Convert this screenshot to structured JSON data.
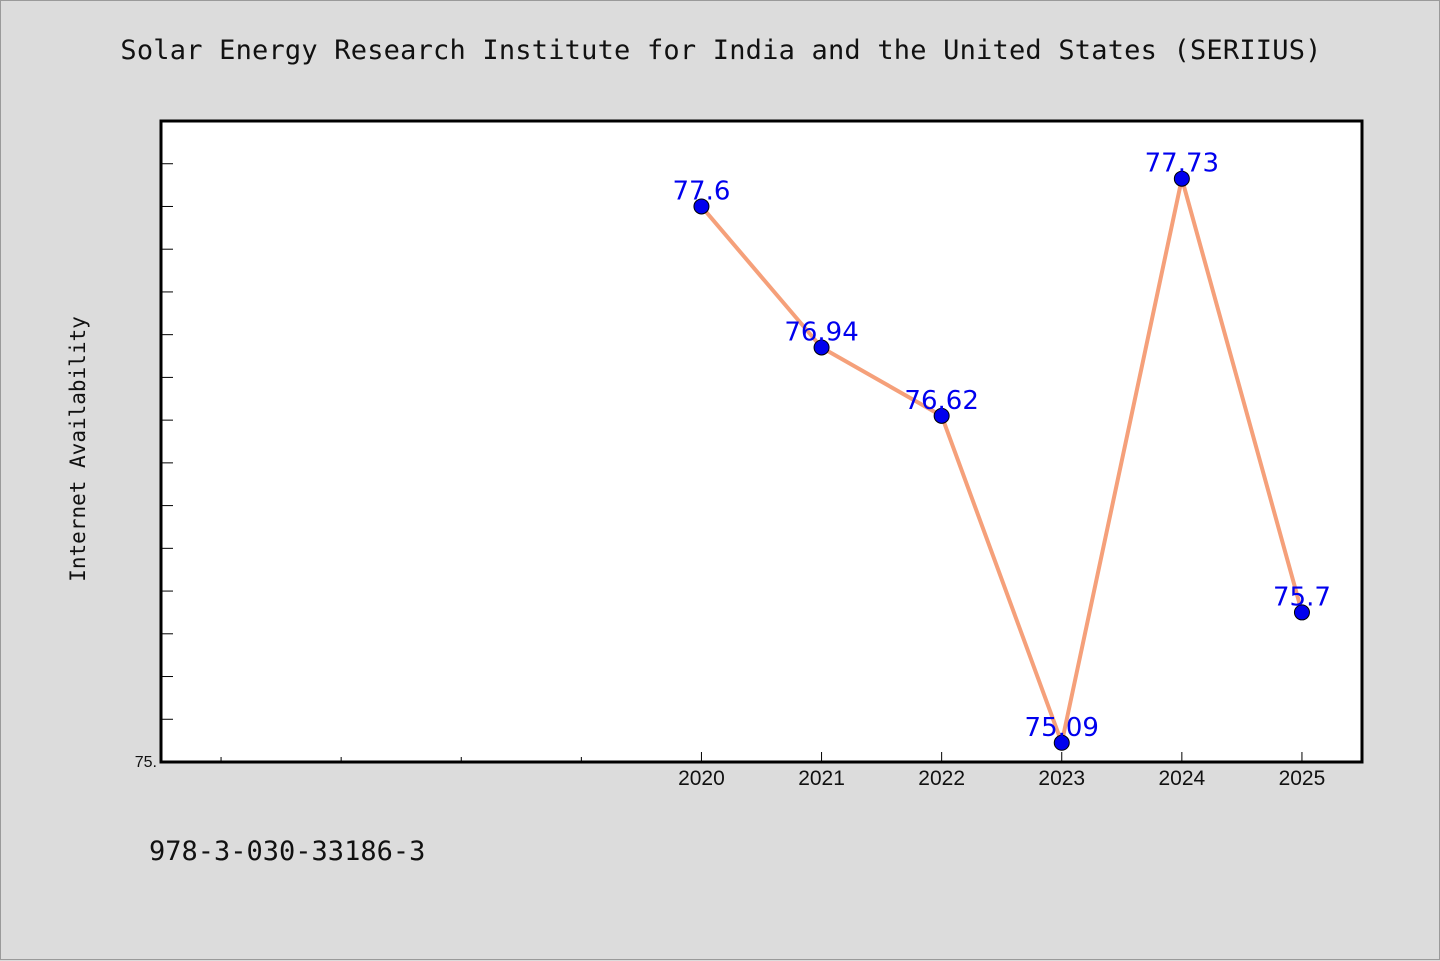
{
  "title": "Solar Energy Research Institute for India and the United States (SERIIUS)",
  "footer_text": "978-3-030-33186-3",
  "chart_data": {
    "type": "line",
    "title": "Solar Energy Research Institute for India and the United States (SERIIUS)",
    "xlabel": "",
    "ylabel": "Internet Availability",
    "categories": [
      "2020",
      "2021",
      "2022",
      "2023",
      "2024",
      "2025"
    ],
    "series": [
      {
        "values": [
          77.6,
          76.94,
          76.62,
          75.09,
          77.73,
          75.7
        ]
      }
    ],
    "data_labels": [
      "77.6",
      "76.94",
      "76.62",
      "75.09",
      "77.73",
      "75.7"
    ],
    "y_tick_labels": [
      "75."
    ],
    "ylim": [
      75.0,
      78.0
    ],
    "xlim": [
      2015.5,
      2025.5
    ],
    "grid": false,
    "legend": "none",
    "colors": {
      "line": "#f5a07a",
      "marker": "#0000ee",
      "label": "#0000ee",
      "background": "#dcdcdc",
      "plot_background": "#ffffff"
    }
  }
}
